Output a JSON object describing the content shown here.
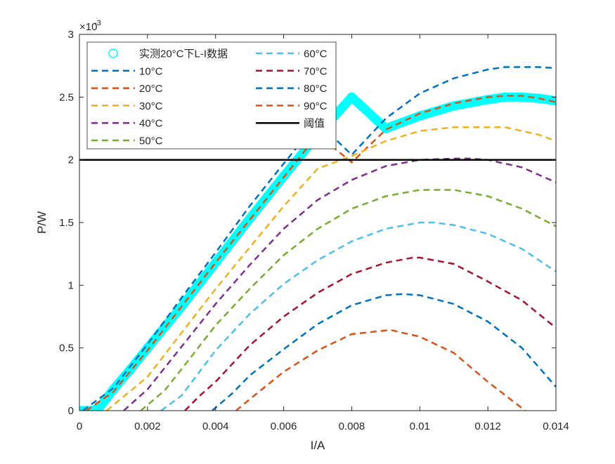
{
  "chart_data": {
    "type": "line",
    "title": "",
    "xlabel": "I/A",
    "ylabel": "P/W",
    "y_exponent_label": "×10",
    "y_exponent_power": "-3",
    "xlim": [
      0,
      0.014
    ],
    "ylim": [
      0,
      0.003
    ],
    "x_ticks": [
      0,
      0.002,
      0.004,
      0.006,
      0.008,
      0.01,
      0.012,
      0.014
    ],
    "x_tick_labels": [
      "0",
      "0.002",
      "0.004",
      "0.006",
      "0.008",
      "0.01",
      "0.012",
      "0.014"
    ],
    "y_ticks": [
      0,
      0.0005,
      0.001,
      0.0015,
      0.002,
      0.0025,
      0.003
    ],
    "y_tick_labels": [
      "0",
      "0.5",
      "1",
      "1.5",
      "2",
      "2.5",
      "3"
    ],
    "grid": false,
    "legend_position": "top-left",
    "series": [
      {
        "name": "实测20°C下L-I数据",
        "style": "marker",
        "color": "#00ffff",
        "x": [
          0,
          0.0002,
          0.0004,
          0.0006,
          0.0008,
          0.001,
          0.0015,
          0.002,
          0.003,
          0.004,
          0.005,
          0.006,
          0.007,
          0.008,
          0.009,
          0.01,
          0.011,
          0.012,
          0.0125,
          0.013,
          0.0135,
          0.014
        ],
        "y": [
          0,
          0,
          0,
          3e-05,
          0.0001,
          0.00017,
          0.00033,
          0.0005,
          0.00083,
          0.00118,
          0.00153,
          0.00187,
          0.0022,
          0.0025,
          0.00225,
          0.00235,
          0.00243,
          0.00248,
          0.0025,
          0.0025,
          0.00249,
          0.00247
        ]
      },
      {
        "name": "10°C",
        "color": "#0072bd",
        "x": [
          0.0001,
          0.001,
          0.002,
          0.003,
          0.004,
          0.005,
          0.006,
          0.007,
          0.008,
          0.009,
          0.01,
          0.011,
          0.012,
          0.0125,
          0.013,
          0.0135,
          0.014
        ],
        "y": [
          0,
          0.00018,
          0.00053,
          0.0009,
          0.00126,
          0.00163,
          0.00197,
          0.0023,
          0.00204,
          0.00233,
          0.00253,
          0.00265,
          0.00272,
          0.00274,
          0.00274,
          0.00274,
          0.00273
        ]
      },
      {
        "name": "20°C",
        "color": "#d95319",
        "x": [
          0.0002,
          0.001,
          0.002,
          0.003,
          0.004,
          0.005,
          0.006,
          0.007,
          0.008,
          0.009,
          0.01,
          0.011,
          0.012,
          0.0125,
          0.013,
          0.0135,
          0.014
        ],
        "y": [
          0,
          0.00015,
          0.00048,
          0.00083,
          0.00118,
          0.00152,
          0.00186,
          0.0022,
          0.00198,
          0.00224,
          0.00237,
          0.00245,
          0.0025,
          0.00251,
          0.00251,
          0.00249,
          0.00246
        ]
      },
      {
        "name": "30°C",
        "color": "#edb120",
        "x": [
          0.0008,
          0.002,
          0.003,
          0.004,
          0.005,
          0.006,
          0.007,
          0.008,
          0.009,
          0.01,
          0.011,
          0.012,
          0.0125,
          0.013,
          0.0135,
          0.014
        ],
        "y": [
          0,
          0.00027,
          0.00062,
          0.00097,
          0.0013,
          0.00163,
          0.00193,
          0.00203,
          0.00215,
          0.00223,
          0.00226,
          0.00226,
          0.00226,
          0.00223,
          0.0022,
          0.00215
        ]
      },
      {
        "name": "40°C",
        "color": "#7e2f8e",
        "x": [
          0.0013,
          0.002,
          0.003,
          0.004,
          0.005,
          0.006,
          0.007,
          0.008,
          0.009,
          0.01,
          0.011,
          0.0115,
          0.012,
          0.013,
          0.014
        ],
        "y": [
          0,
          0.00017,
          0.00051,
          0.00085,
          0.00116,
          0.00145,
          0.00168,
          0.00184,
          0.00195,
          0.002,
          0.00201,
          0.00201,
          0.002,
          0.00194,
          0.00182
        ]
      },
      {
        "name": "50°C",
        "color": "#77ac30",
        "x": [
          0.0018,
          0.0025,
          0.003,
          0.004,
          0.005,
          0.006,
          0.007,
          0.008,
          0.009,
          0.01,
          0.0105,
          0.011,
          0.012,
          0.013,
          0.014
        ],
        "y": [
          0,
          0.00016,
          0.00033,
          0.00068,
          0.00097,
          0.00124,
          0.00145,
          0.00161,
          0.00171,
          0.00176,
          0.00176,
          0.00176,
          0.00171,
          0.00161,
          0.00147
        ]
      },
      {
        "name": "60°C",
        "color": "#4dbeee",
        "x": [
          0.0024,
          0.003,
          0.004,
          0.005,
          0.006,
          0.007,
          0.008,
          0.009,
          0.01,
          0.0104,
          0.011,
          0.012,
          0.013,
          0.014
        ],
        "y": [
          0,
          0.00012,
          0.00048,
          0.00077,
          0.00101,
          0.0012,
          0.00135,
          0.00145,
          0.0015,
          0.0015,
          0.00148,
          0.00141,
          0.00129,
          0.00111
        ]
      },
      {
        "name": "70°C",
        "color": "#a2142f",
        "x": [
          0.0031,
          0.0035,
          0.004,
          0.005,
          0.006,
          0.007,
          0.008,
          0.009,
          0.0098,
          0.01,
          0.011,
          0.012,
          0.013,
          0.014
        ],
        "y": [
          0,
          0.00011,
          0.00023,
          0.00052,
          0.00075,
          0.00094,
          0.00109,
          0.00118,
          0.00122,
          0.00122,
          0.00117,
          0.00103,
          0.00088,
          0.00066
        ]
      },
      {
        "name": "80°C",
        "color": "#0072bd",
        "x": [
          0.0039,
          0.0045,
          0.005,
          0.006,
          0.007,
          0.008,
          0.009,
          0.0095,
          0.01,
          0.011,
          0.012,
          0.013,
          0.014
        ],
        "y": [
          0,
          0.00014,
          0.00028,
          0.00049,
          0.00069,
          0.00084,
          0.00092,
          0.00093,
          0.00092,
          0.00085,
          0.00071,
          0.0005,
          0.00019
        ]
      },
      {
        "name": "90°C",
        "color": "#d95319",
        "x": [
          0.0046,
          0.005,
          0.006,
          0.007,
          0.008,
          0.009,
          0.0092,
          0.01,
          0.011,
          0.012,
          0.013,
          0.0131
        ],
        "y": [
          0,
          9e-05,
          0.00031,
          0.00048,
          0.00061,
          0.00064,
          0.00064,
          0.00059,
          0.00046,
          0.00023,
          2e-05,
          0
        ]
      },
      {
        "name": "阈值",
        "style": "solid",
        "color": "#000000",
        "x": [
          0,
          0.014
        ],
        "y": [
          0.002,
          0.002
        ]
      }
    ]
  }
}
